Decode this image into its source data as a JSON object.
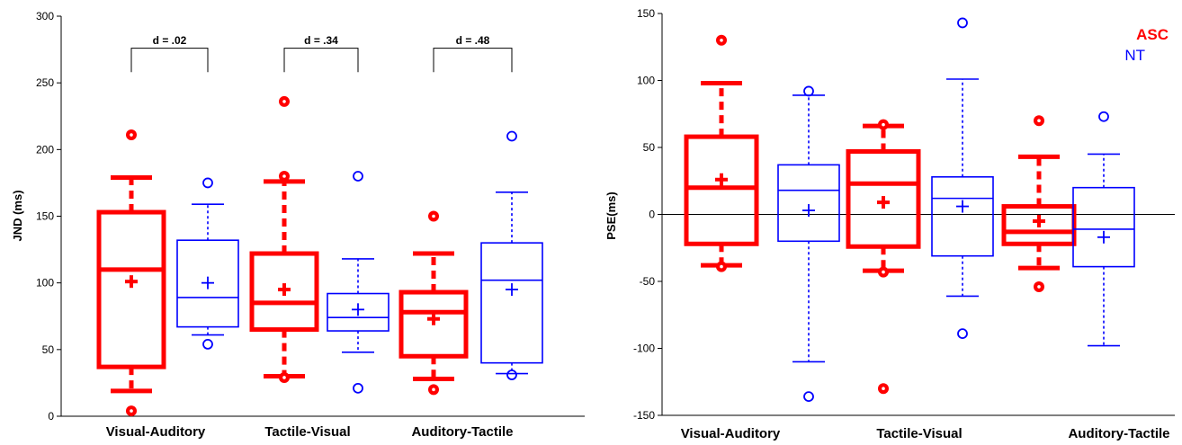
{
  "colors": {
    "asc": "#ff0000",
    "nt": "#0000ff",
    "axis": "#000000"
  },
  "chart_data": [
    {
      "type": "box",
      "title": "",
      "xlabel": "",
      "ylabel": "JND (ms)",
      "ylim": [
        0,
        300
      ],
      "yticks": [
        0,
        50,
        100,
        150,
        200,
        250,
        300
      ],
      "categories": [
        "Visual-Auditory",
        "Tactile-Visual",
        "Auditory-Tactile"
      ],
      "effect_sizes": [
        "d = .02",
        "d = .34",
        "d = .48"
      ],
      "series": [
        {
          "name": "ASC",
          "color": "#ff0000",
          "boxes": [
            {
              "q1": 37,
              "median": 110,
              "q3": 153,
              "whisker_low": 19,
              "whisker_high": 179,
              "mean": 101,
              "outliers": [
                4,
                211
              ]
            },
            {
              "q1": 65,
              "median": 85,
              "q3": 122,
              "whisker_low": 30,
              "whisker_high": 176,
              "mean": 95,
              "outliers": [
                29,
                180,
                236
              ]
            },
            {
              "q1": 45,
              "median": 78,
              "q3": 93,
              "whisker_low": 28,
              "whisker_high": 122,
              "mean": 73,
              "outliers": [
                20,
                150
              ]
            }
          ]
        },
        {
          "name": "NT",
          "color": "#0000ff",
          "boxes": [
            {
              "q1": 67,
              "median": 89,
              "q3": 132,
              "whisker_low": 61,
              "whisker_high": 159,
              "mean": 100,
              "outliers": [
                54,
                175
              ]
            },
            {
              "q1": 64,
              "median": 74,
              "q3": 92,
              "whisker_low": 48,
              "whisker_high": 118,
              "mean": 80,
              "outliers": [
                21,
                180
              ]
            },
            {
              "q1": 40,
              "median": 102,
              "q3": 130,
              "whisker_low": 32,
              "whisker_high": 168,
              "mean": 95,
              "outliers": [
                31,
                210
              ]
            }
          ]
        }
      ]
    },
    {
      "type": "box",
      "title": "",
      "xlabel": "",
      "ylabel": "PSE(ms)",
      "ylim": [
        -150,
        150
      ],
      "yticks": [
        -150,
        -100,
        -50,
        0,
        50,
        100,
        150
      ],
      "categories": [
        "Visual-Auditory",
        "Tactile-Visual",
        "Auditory-Tactile"
      ],
      "reference_line": 0,
      "legend": {
        "position": "top-right",
        "labels": [
          "ASC",
          "NT"
        ]
      },
      "series": [
        {
          "name": "ASC",
          "color": "#ff0000",
          "boxes": [
            {
              "q1": -22,
              "median": 20,
              "q3": 58,
              "whisker_low": -38,
              "whisker_high": 98,
              "mean": 26,
              "outliers": [
                -39,
                130
              ]
            },
            {
              "q1": -24,
              "median": 23,
              "q3": 47,
              "whisker_low": -42,
              "whisker_high": 66,
              "mean": 9,
              "outliers": [
                -43,
                67,
                -130
              ]
            },
            {
              "q1": -22,
              "median": -13,
              "q3": 6,
              "whisker_low": -40,
              "whisker_high": 43,
              "mean": -5,
              "outliers": [
                -54,
                70
              ]
            }
          ]
        },
        {
          "name": "NT",
          "color": "#0000ff",
          "boxes": [
            {
              "q1": -20,
              "median": 18,
              "q3": 37,
              "whisker_low": -110,
              "whisker_high": 89,
              "mean": 3,
              "outliers": [
                -136,
                92
              ]
            },
            {
              "q1": -31,
              "median": 12,
              "q3": 28,
              "whisker_low": -61,
              "whisker_high": 101,
              "mean": 6,
              "outliers": [
                -89,
                143
              ]
            },
            {
              "q1": -39,
              "median": -11,
              "q3": 20,
              "whisker_low": -98,
              "whisker_high": 45,
              "mean": -17,
              "outliers": [
                73
              ]
            }
          ]
        }
      ]
    }
  ]
}
